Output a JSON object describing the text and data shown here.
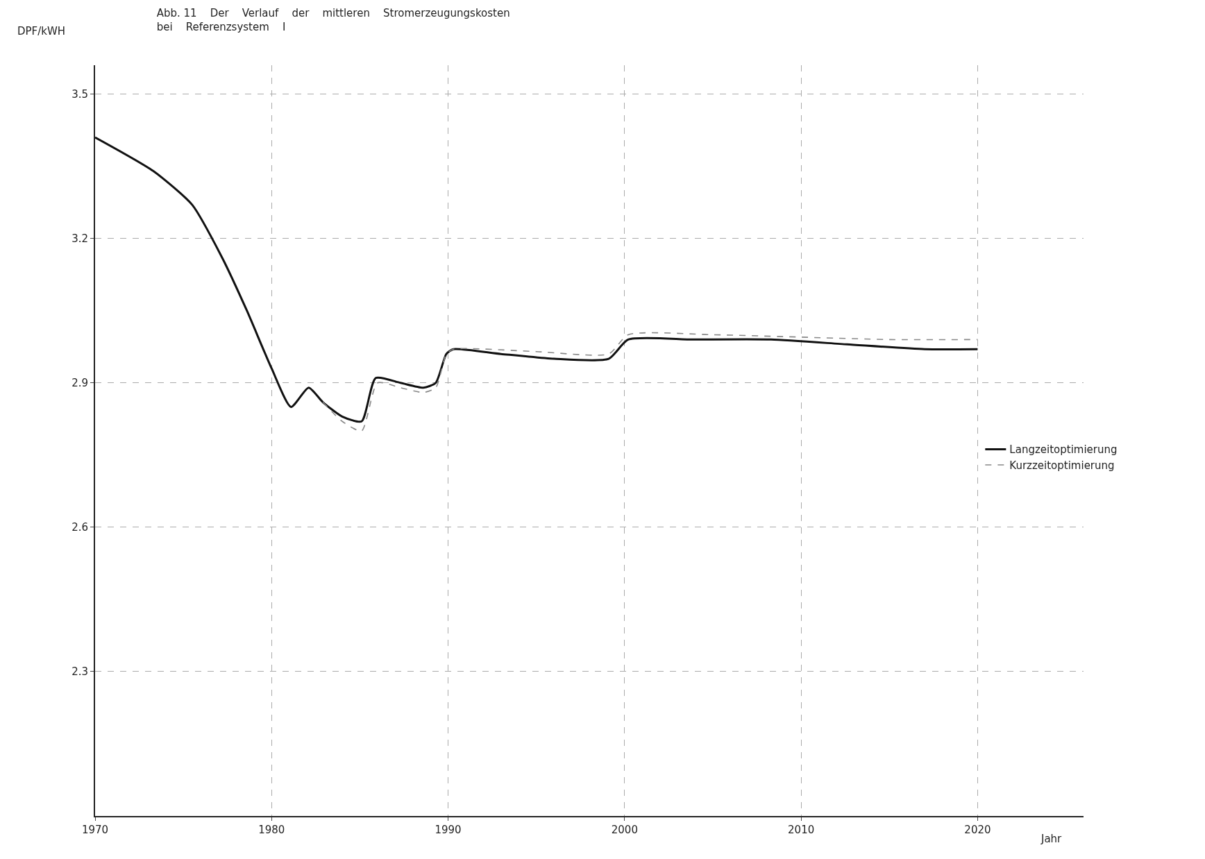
{
  "chart_data": {
    "type": "line",
    "title": "Abb. 11    Der    Verlauf    der    mittleren    Stromerzeugungskosten\nbei    Referenzsystem    I",
    "xlabel": "Jahr",
    "ylabel": "DPF/kWH",
    "xlim": [
      1970,
      2026
    ],
    "ylim": [
      2.0,
      3.56
    ],
    "xticks": [
      1970,
      1980,
      1990,
      2000,
      2010,
      2020
    ],
    "yticks": [
      2.3,
      2.6,
      2.9,
      3.2,
      3.5
    ],
    "grid": true,
    "legend": "right",
    "marker": "none",
    "series": [
      {
        "name": "Langzeitoptimierung",
        "color": "#111111",
        "line_style": "solid",
        "x": [
          1970,
          1973.3,
          1975.5,
          1977.2,
          1978.6,
          1980,
          1981.1,
          1982.1,
          1982.9,
          1984,
          1985.1,
          1985.9,
          1987.3,
          1988.6,
          1989.3,
          1989.9,
          1990.3,
          1993,
          1996,
          1999.1,
          2000.2,
          2003.9,
          2008.3,
          2012.6,
          2017,
          2020
        ],
        "values": [
          3.41,
          3.34,
          3.27,
          3.16,
          3.05,
          2.93,
          2.85,
          2.89,
          2.86,
          2.83,
          2.82,
          2.91,
          2.9,
          2.89,
          2.9,
          2.96,
          2.97,
          2.96,
          2.95,
          2.95,
          2.99,
          2.99,
          2.99,
          2.98,
          2.97,
          2.97
        ]
      },
      {
        "name": "Kurzzeitoptimierung",
        "color": "#888888",
        "line_style": "dashed",
        "x": [
          1982.9,
          1984,
          1985.1,
          1986,
          1987.3,
          1988.6,
          1989.3,
          1989.9,
          1990.3,
          1995,
          1999.1,
          2000.2,
          2005,
          2010,
          2015,
          2020
        ],
        "values": [
          2.86,
          2.82,
          2.8,
          2.9,
          2.89,
          2.88,
          2.89,
          2.96,
          2.97,
          2.965,
          2.96,
          3.0,
          3.0,
          2.995,
          2.99,
          2.99
        ]
      }
    ]
  }
}
